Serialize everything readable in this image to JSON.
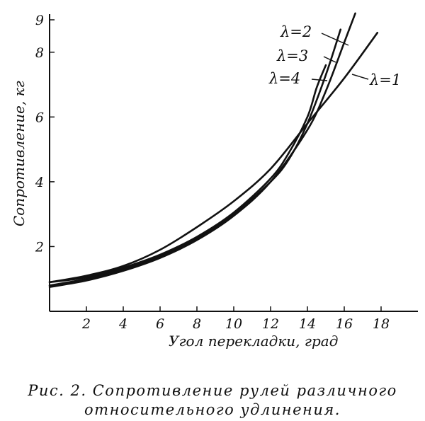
{
  "chart_data": {
    "type": "line",
    "xlabel": "Угол перекладки, град",
    "ylabel": "Сопротивление, кг",
    "xlim": [
      0,
      20
    ],
    "ylim": [
      0,
      9
    ],
    "x_ticks": [
      2,
      4,
      6,
      8,
      10,
      12,
      14,
      16,
      18
    ],
    "y_ticks": [
      2,
      4,
      6,
      8,
      9
    ],
    "grid": false,
    "series": [
      {
        "name": "λ=1",
        "x": [
          0,
          2,
          4,
          6,
          8,
          10,
          12,
          14,
          16,
          17.8
        ],
        "y": [
          0.9,
          1.1,
          1.4,
          1.9,
          2.6,
          3.4,
          4.4,
          5.8,
          7.2,
          8.6
        ]
      },
      {
        "name": "λ=2",
        "x": [
          0,
          2,
          4,
          6,
          8,
          10,
          12,
          14,
          15,
          16,
          16.6
        ],
        "y": [
          0.75,
          0.95,
          1.25,
          1.65,
          2.2,
          2.95,
          4.0,
          5.6,
          6.8,
          8.3,
          9.2
        ]
      },
      {
        "name": "λ=3",
        "x": [
          0,
          2,
          4,
          6,
          8,
          10,
          12,
          13,
          14,
          15,
          15.8
        ],
        "y": [
          0.8,
          1.0,
          1.3,
          1.7,
          2.25,
          3.0,
          4.0,
          4.7,
          5.8,
          7.3,
          8.7
        ]
      },
      {
        "name": "λ=4",
        "x": [
          0,
          2,
          4,
          6,
          8,
          10,
          12,
          13,
          14,
          14.5,
          15.0
        ],
        "y": [
          0.9,
          1.05,
          1.35,
          1.75,
          2.3,
          3.05,
          4.1,
          4.9,
          6.0,
          6.9,
          7.6
        ]
      }
    ]
  },
  "caption": {
    "line1": "Рис. 2.  Сопротивление рулей различного",
    "line2": "относительного удлинения."
  }
}
